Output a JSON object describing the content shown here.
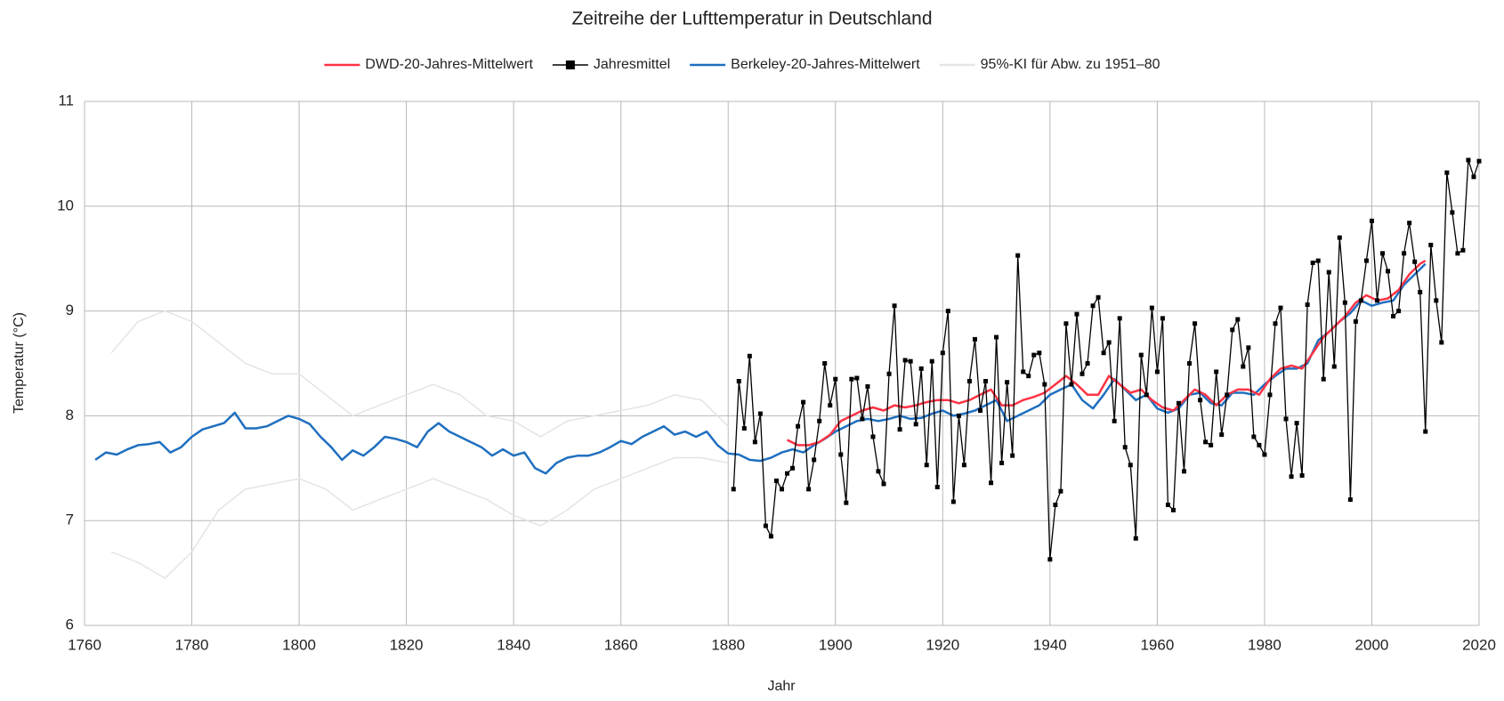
{
  "chart_data": {
    "type": "line",
    "title": "Zeitreihe der Lufttemperatur in Deutschland",
    "x_label": "Jahr",
    "y_label": "Temperatur (°C)",
    "xlim": [
      1760,
      2020
    ],
    "xticks": [
      1760,
      1780,
      1800,
      1820,
      1840,
      1860,
      1880,
      1900,
      1920,
      1940,
      1960,
      1980,
      2000,
      2020
    ],
    "ylim": [
      6,
      11
    ],
    "yticks": [
      6,
      7,
      8,
      9,
      10,
      11
    ],
    "grid": true,
    "legend": "top",
    "series": [
      {
        "name": "DWD-20-Jahres-Mittelwert",
        "color": "#ff3344",
        "x": [
          1891,
          1893,
          1895,
          1897,
          1899,
          1901,
          1903,
          1905,
          1907,
          1909,
          1911,
          1913,
          1915,
          1917,
          1919,
          1921,
          1923,
          1925,
          1927,
          1929,
          1931,
          1933,
          1935,
          1937,
          1939,
          1941,
          1943,
          1945,
          1947,
          1949,
          1951,
          1953,
          1955,
          1957,
          1959,
          1961,
          1963,
          1965,
          1967,
          1969,
          1971,
          1973,
          1975,
          1977,
          1979,
          1981,
          1983,
          1985,
          1987,
          1989,
          1991,
          1993,
          1995,
          1997,
          1999,
          2001,
          2003,
          2005,
          2007,
          2009,
          2010
        ],
        "values": [
          7.77,
          7.72,
          7.72,
          7.75,
          7.82,
          7.95,
          8.0,
          8.05,
          8.08,
          8.05,
          8.1,
          8.08,
          8.1,
          8.13,
          8.15,
          8.15,
          8.12,
          8.15,
          8.2,
          8.25,
          8.1,
          8.1,
          8.15,
          8.18,
          8.22,
          8.3,
          8.38,
          8.3,
          8.2,
          8.2,
          8.38,
          8.3,
          8.22,
          8.25,
          8.15,
          8.08,
          8.05,
          8.15,
          8.25,
          8.2,
          8.1,
          8.2,
          8.25,
          8.25,
          8.2,
          8.35,
          8.45,
          8.48,
          8.45,
          8.6,
          8.75,
          8.85,
          8.95,
          9.08,
          9.15,
          9.1,
          9.12,
          9.2,
          9.35,
          9.45,
          9.48
        ]
      },
      {
        "name": "Jahresmittel",
        "color": "#000000",
        "marker": "square",
        "x": [
          1881,
          1882,
          1883,
          1884,
          1885,
          1886,
          1887,
          1888,
          1889,
          1890,
          1891,
          1892,
          1893,
          1894,
          1895,
          1896,
          1897,
          1898,
          1899,
          1900,
          1901,
          1902,
          1903,
          1904,
          1905,
          1906,
          1907,
          1908,
          1909,
          1910,
          1911,
          1912,
          1913,
          1914,
          1915,
          1916,
          1917,
          1918,
          1919,
          1920,
          1921,
          1922,
          1923,
          1924,
          1925,
          1926,
          1927,
          1928,
          1929,
          1930,
          1931,
          1932,
          1933,
          1934,
          1935,
          1936,
          1937,
          1938,
          1939,
          1940,
          1941,
          1942,
          1943,
          1944,
          1945,
          1946,
          1947,
          1948,
          1949,
          1950,
          1951,
          1952,
          1953,
          1954,
          1955,
          1956,
          1957,
          1958,
          1959,
          1960,
          1961,
          1962,
          1963,
          1964,
          1965,
          1966,
          1967,
          1968,
          1969,
          1970,
          1971,
          1972,
          1973,
          1974,
          1975,
          1976,
          1977,
          1978,
          1979,
          1980,
          1981,
          1982,
          1983,
          1984,
          1985,
          1986,
          1987,
          1988,
          1989,
          1990,
          1991,
          1992,
          1993,
          1994,
          1995,
          1996,
          1997,
          1998,
          1999,
          2000,
          2001,
          2002,
          2003,
          2004,
          2005,
          2006,
          2007,
          2008,
          2009,
          2010,
          2011,
          2012,
          2013,
          2014,
          2015,
          2016,
          2017,
          2018,
          2019,
          2020
        ],
        "values": [
          7.3,
          8.33,
          7.88,
          8.57,
          7.75,
          8.02,
          6.95,
          6.85,
          7.38,
          7.3,
          7.45,
          7.5,
          7.9,
          8.13,
          7.3,
          7.58,
          7.95,
          8.5,
          8.1,
          8.35,
          7.63,
          7.17,
          8.35,
          8.36,
          7.97,
          8.28,
          7.8,
          7.47,
          7.35,
          8.4,
          9.05,
          7.87,
          8.53,
          8.52,
          7.92,
          8.45,
          7.53,
          8.52,
          7.32,
          8.6,
          9.0,
          7.18,
          8.0,
          7.53,
          8.33,
          8.73,
          8.05,
          8.33,
          7.36,
          8.75,
          7.55,
          8.32,
          7.62,
          9.53,
          8.42,
          8.38,
          8.58,
          8.6,
          8.3,
          6.63,
          7.15,
          7.28,
          8.88,
          8.3,
          8.97,
          8.4,
          8.5,
          9.05,
          9.13,
          8.6,
          8.7,
          7.95,
          8.93,
          7.7,
          7.53,
          6.83,
          8.58,
          8.2,
          9.03,
          8.42,
          8.93,
          7.15,
          7.1,
          8.12,
          7.47,
          8.5,
          8.88,
          8.15,
          7.75,
          7.72,
          8.42,
          7.82,
          8.2,
          8.82,
          8.92,
          8.47,
          8.65,
          7.8,
          7.72,
          7.63,
          8.2,
          8.88,
          9.03,
          7.97,
          7.42,
          7.93,
          7.43,
          9.06,
          9.46,
          9.48,
          8.35,
          9.37,
          8.47,
          9.7,
          9.08,
          7.2,
          8.9,
          9.1,
          9.48,
          9.86,
          9.1,
          9.55,
          9.38,
          8.95,
          9.0,
          9.55,
          9.84,
          9.47,
          9.18,
          7.85,
          9.63,
          9.1,
          8.7,
          10.32,
          9.94,
          9.55,
          9.58,
          10.44,
          10.28,
          10.43
        ]
      },
      {
        "name": "Berkeley-20-Jahres-Mittelwert",
        "color": "#1f6fbf",
        "x": [
          1762,
          1764,
          1766,
          1768,
          1770,
          1772,
          1774,
          1776,
          1778,
          1780,
          1782,
          1784,
          1786,
          1788,
          1790,
          1792,
          1794,
          1796,
          1798,
          1800,
          1802,
          1804,
          1806,
          1808,
          1810,
          1812,
          1814,
          1816,
          1818,
          1820,
          1822,
          1824,
          1826,
          1828,
          1830,
          1832,
          1834,
          1836,
          1838,
          1840,
          1842,
          1844,
          1846,
          1848,
          1850,
          1852,
          1854,
          1856,
          1858,
          1860,
          1862,
          1864,
          1866,
          1868,
          1870,
          1872,
          1874,
          1876,
          1878,
          1880,
          1882,
          1884,
          1886,
          1888,
          1890,
          1892,
          1894,
          1896,
          1898,
          1900,
          1902,
          1904,
          1906,
          1908,
          1910,
          1912,
          1914,
          1916,
          1918,
          1920,
          1922,
          1924,
          1926,
          1928,
          1930,
          1932,
          1934,
          1936,
          1938,
          1940,
          1942,
          1944,
          1946,
          1948,
          1950,
          1952,
          1954,
          1956,
          1958,
          1960,
          1962,
          1964,
          1966,
          1968,
          1970,
          1972,
          1974,
          1976,
          1978,
          1980,
          1982,
          1984,
          1986,
          1988,
          1990,
          1992,
          1994,
          1996,
          1998,
          2000,
          2002,
          2004,
          2006,
          2008,
          2010
        ],
        "values": [
          7.58,
          7.65,
          7.63,
          7.68,
          7.72,
          7.73,
          7.75,
          7.65,
          7.7,
          7.8,
          7.87,
          7.9,
          7.93,
          8.03,
          7.88,
          7.88,
          7.9,
          7.95,
          8.0,
          7.97,
          7.92,
          7.8,
          7.7,
          7.58,
          7.67,
          7.62,
          7.7,
          7.8,
          7.78,
          7.75,
          7.7,
          7.85,
          7.93,
          7.85,
          7.8,
          7.75,
          7.7,
          7.62,
          7.68,
          7.62,
          7.65,
          7.5,
          7.45,
          7.55,
          7.6,
          7.62,
          7.62,
          7.65,
          7.7,
          7.76,
          7.73,
          7.8,
          7.85,
          7.9,
          7.82,
          7.85,
          7.8,
          7.85,
          7.72,
          7.64,
          7.63,
          7.58,
          7.57,
          7.6,
          7.65,
          7.68,
          7.65,
          7.72,
          7.78,
          7.85,
          7.9,
          7.95,
          7.97,
          7.95,
          7.97,
          8.0,
          7.97,
          7.98,
          8.02,
          8.05,
          8.0,
          8.02,
          8.05,
          8.1,
          8.15,
          7.95,
          8.0,
          8.05,
          8.1,
          8.2,
          8.25,
          8.3,
          8.15,
          8.07,
          8.2,
          8.35,
          8.25,
          8.15,
          8.2,
          8.07,
          8.03,
          8.07,
          8.2,
          8.22,
          8.12,
          8.1,
          8.22,
          8.22,
          8.2,
          8.3,
          8.38,
          8.45,
          8.45,
          8.5,
          8.72,
          8.8,
          8.9,
          8.98,
          9.1,
          9.05,
          9.08,
          9.1,
          9.25,
          9.35,
          9.45
        ]
      },
      {
        "name": "95%-KI für Abw. zu 1951–80",
        "color": "#e4e4e4",
        "band": true,
        "x": [
          1765,
          1770,
          1775,
          1780,
          1785,
          1790,
          1795,
          1800,
          1805,
          1810,
          1815,
          1820,
          1825,
          1830,
          1835,
          1840,
          1845,
          1850,
          1855,
          1860,
          1865,
          1870,
          1875,
          1880
        ],
        "upper": [
          8.6,
          8.9,
          9.0,
          8.9,
          8.7,
          8.5,
          8.4,
          8.4,
          8.2,
          8.0,
          8.1,
          8.2,
          8.3,
          8.2,
          8.0,
          7.95,
          7.8,
          7.95,
          8.0,
          8.05,
          8.1,
          8.2,
          8.15,
          7.9
        ],
        "lower": [
          6.7,
          6.6,
          6.45,
          6.7,
          7.1,
          7.3,
          7.35,
          7.4,
          7.3,
          7.1,
          7.2,
          7.3,
          7.4,
          7.3,
          7.2,
          7.05,
          6.95,
          7.1,
          7.3,
          7.4,
          7.5,
          7.6,
          7.6,
          7.55
        ]
      }
    ]
  }
}
